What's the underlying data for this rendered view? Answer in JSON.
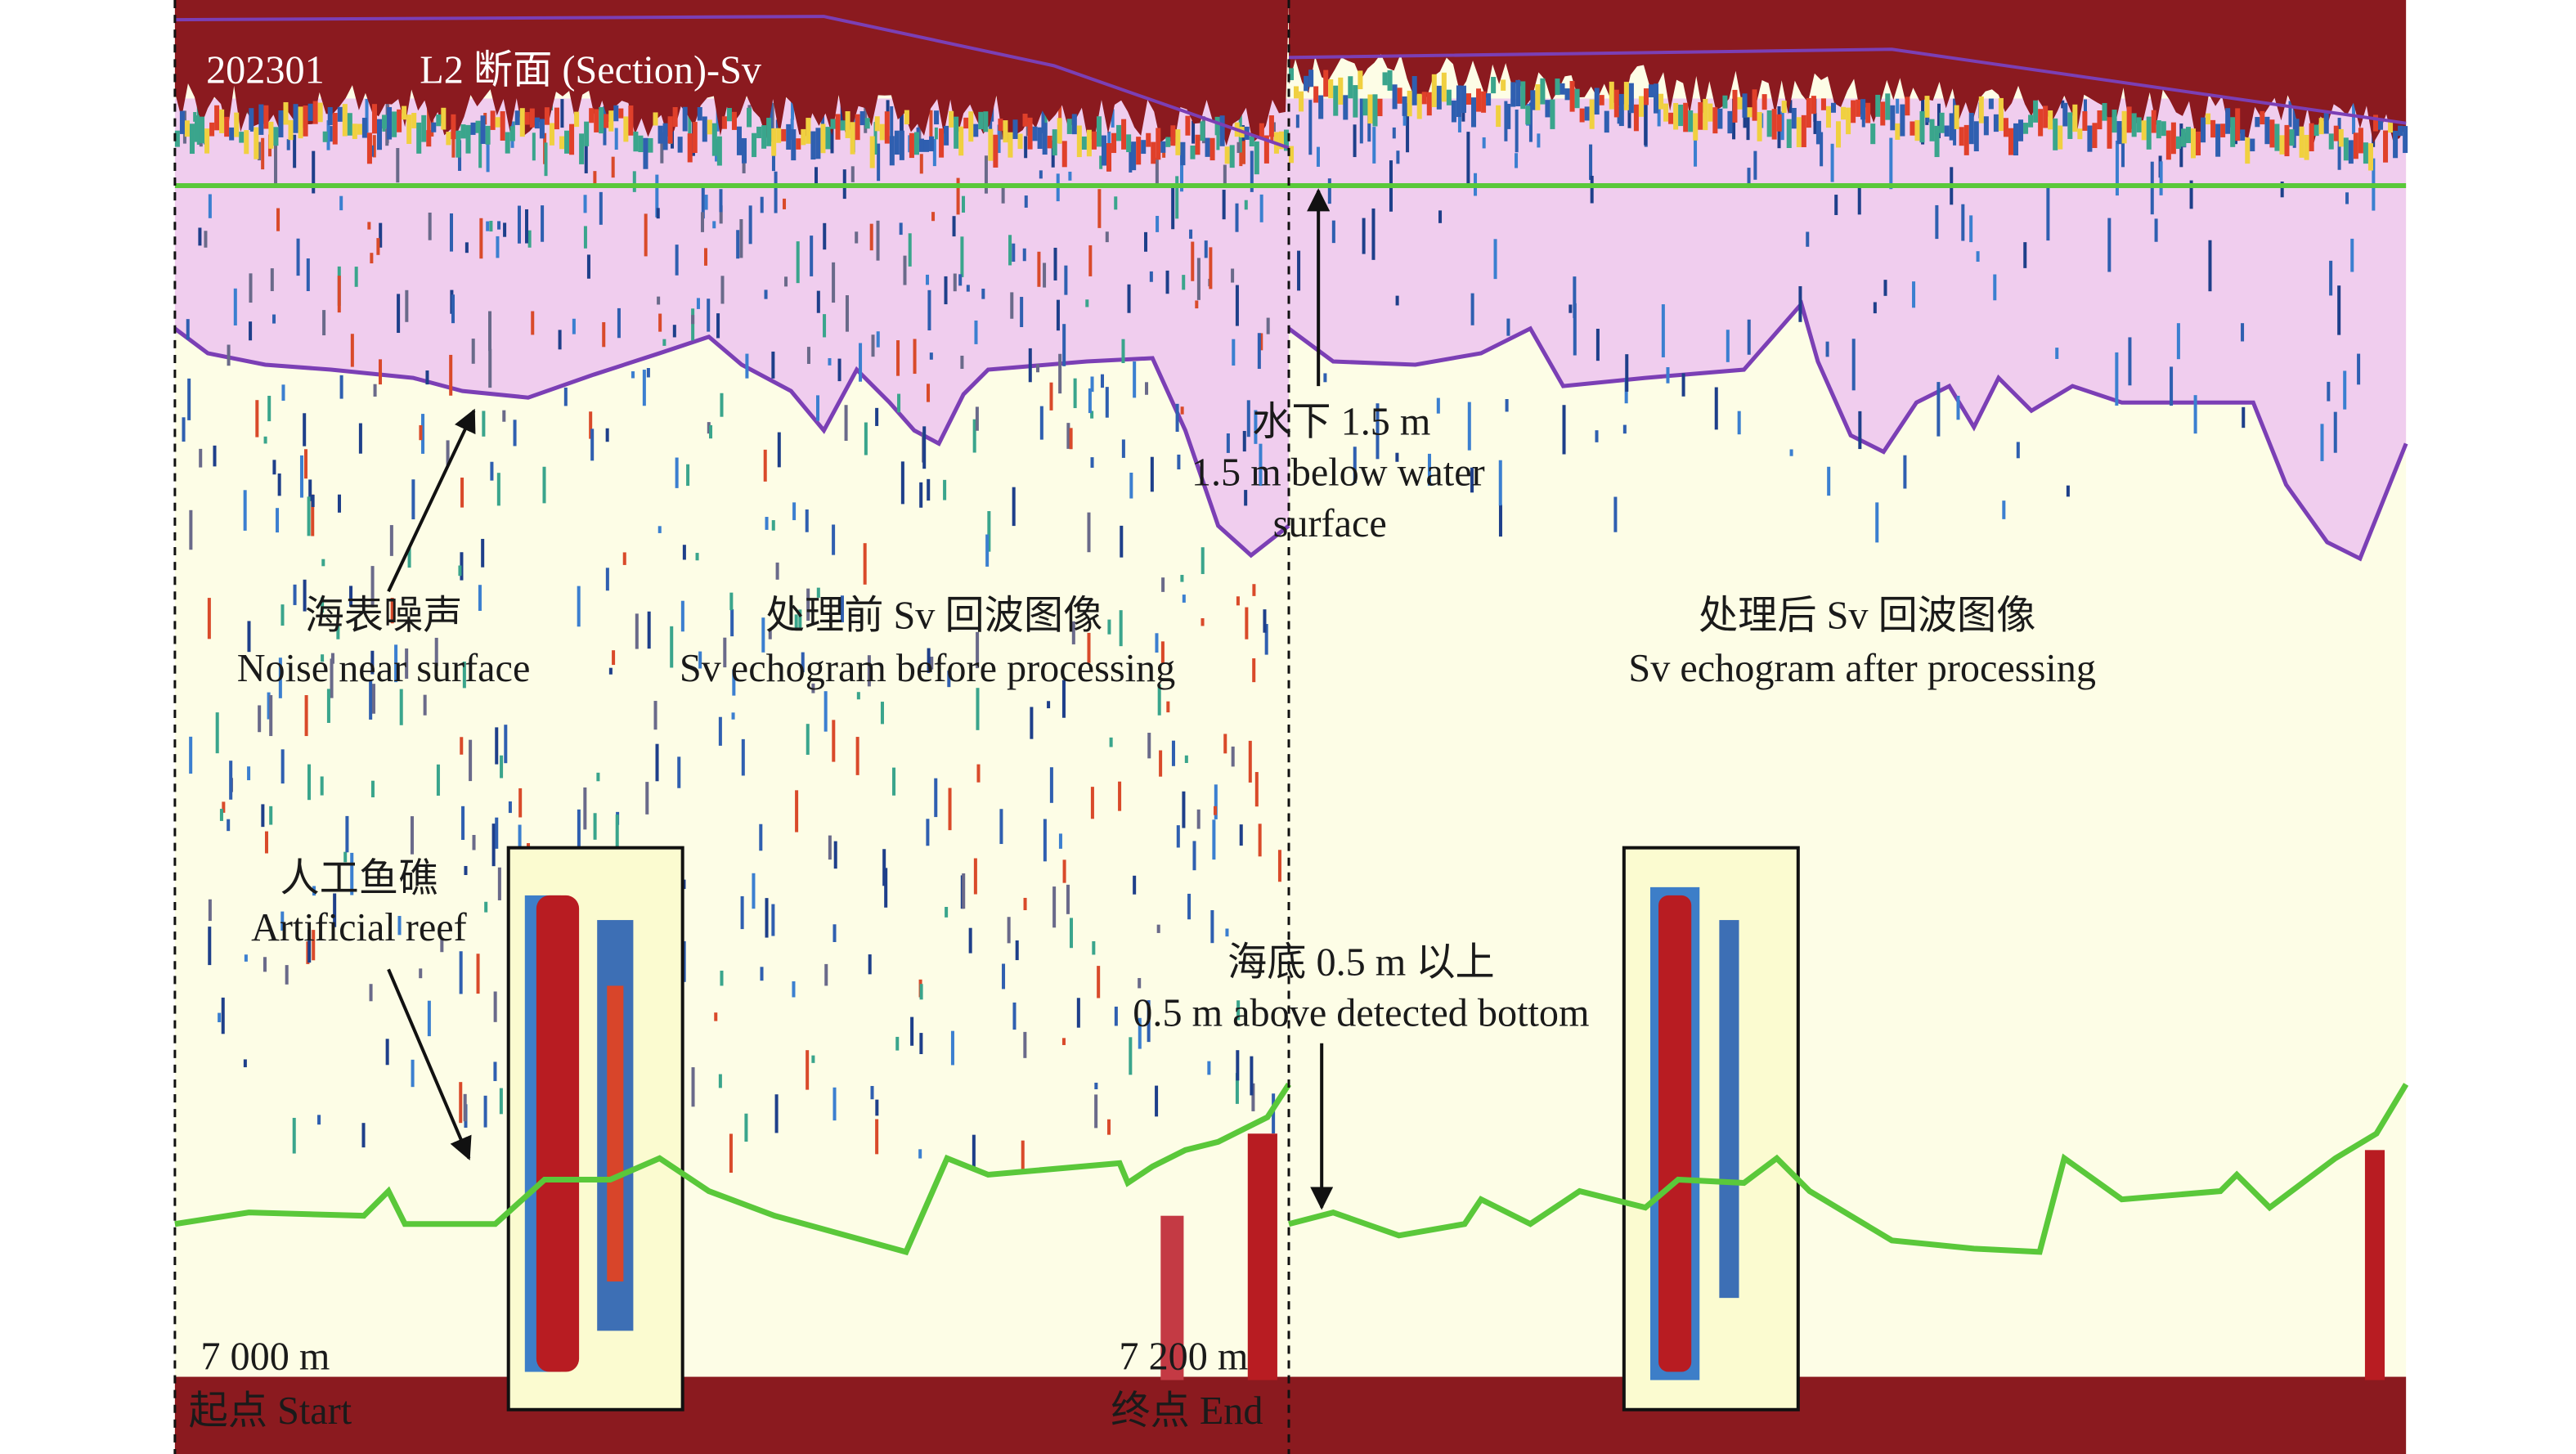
{
  "header": {
    "id": "202301",
    "title": "L2 断面 (Section)-Sv"
  },
  "annotations": {
    "surface_line": [
      "水下 1.5 m",
      "1.5 m below water",
      "surface"
    ],
    "noise": [
      "海表噪声",
      "Noise near surface"
    ],
    "before": [
      "处理前 Sv 回波图像",
      "Sv echogram before processing"
    ],
    "after": [
      "处理后 Sv 回波图像",
      "Sv echogram after processing"
    ],
    "reef": [
      "人工鱼礁",
      "Artificial reef"
    ],
    "bottom_line": [
      "海底 0.5 m 以上",
      "0.5 m above detected bottom"
    ]
  },
  "markers": {
    "start": {
      "distance": "7 000 m",
      "label": "起点 Start"
    },
    "end": {
      "distance": "7 200 m",
      "label": "终点 End"
    }
  }
}
